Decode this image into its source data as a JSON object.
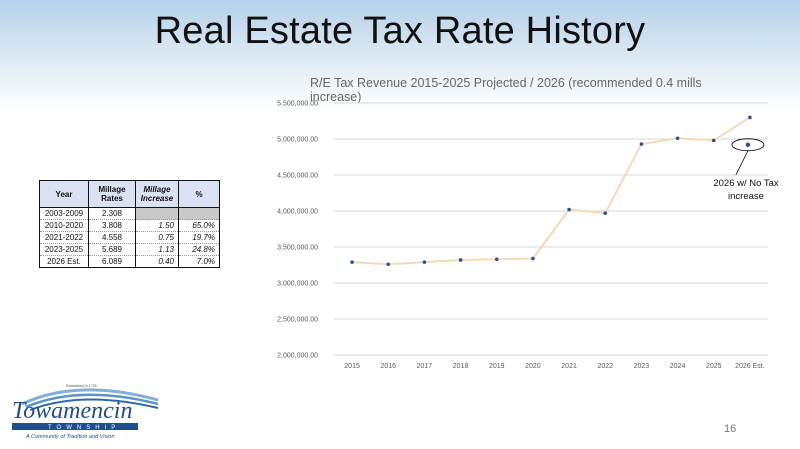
{
  "slide": {
    "title": "Real Estate Tax Rate History",
    "page_number": "16"
  },
  "table": {
    "headers": [
      "Year",
      "Millage Rates",
      "Millage Increase",
      "%"
    ],
    "rows": [
      {
        "year": "2003-2009",
        "rate": "2.308",
        "increase": "",
        "pct": ""
      },
      {
        "year": "2010-2020",
        "rate": "3.808",
        "increase": "1.50",
        "pct": "65.0%"
      },
      {
        "year": "2021-2022",
        "rate": "4.558",
        "increase": "0.75",
        "pct": "19.7%"
      },
      {
        "year": "2023-2025",
        "rate": "5.689",
        "increase": "1.13",
        "pct": "24.8%"
      },
      {
        "year": "2026 Est.",
        "rate": "6.089",
        "increase": "0.40",
        "pct": "7.0%"
      }
    ]
  },
  "logo": {
    "name": "Towamencin",
    "subtitle": "TOWNSHIP",
    "established": "Established in 1728",
    "tagline": "A Community of Tradition and Vision"
  },
  "chart_data": {
    "type": "line",
    "title": "R/E Tax Revenue 2015-2025 Projected / 2026 (recommended 0.4 mills increase)",
    "categories": [
      "2015",
      "2016",
      "2017",
      "2018",
      "2019",
      "2020",
      "2021",
      "2022",
      "2023",
      "2024",
      "2025",
      "2026 Est."
    ],
    "series": [
      {
        "values": [
          3290000,
          3260000,
          3290000,
          3320000,
          3330000,
          3340000,
          4020000,
          3970000,
          4930000,
          5010000,
          4980000,
          5300000
        ]
      }
    ],
    "extra_points": [
      {
        "category": "2026 Est.",
        "value": 4920000,
        "label": "2026 w/ No Tax increase"
      }
    ],
    "ylim": [
      2000000,
      5500000
    ],
    "yticks": [
      "2,000,000.00",
      "2,500,000.00",
      "3,000,000.00",
      "3,500,000.00",
      "4,000,000.00",
      "4,500,000.00",
      "5,000,000.00",
      "5,500,000.00"
    ],
    "ytick_values": [
      2000000,
      2500000,
      3000000,
      3500000,
      4000000,
      4500000,
      5000000,
      5500000
    ],
    "grid": true,
    "colors": {
      "line": "#f8d9b4",
      "marker": "#2e4d9c",
      "grid": "#d9d9d9",
      "axis_text": "#595959"
    }
  }
}
